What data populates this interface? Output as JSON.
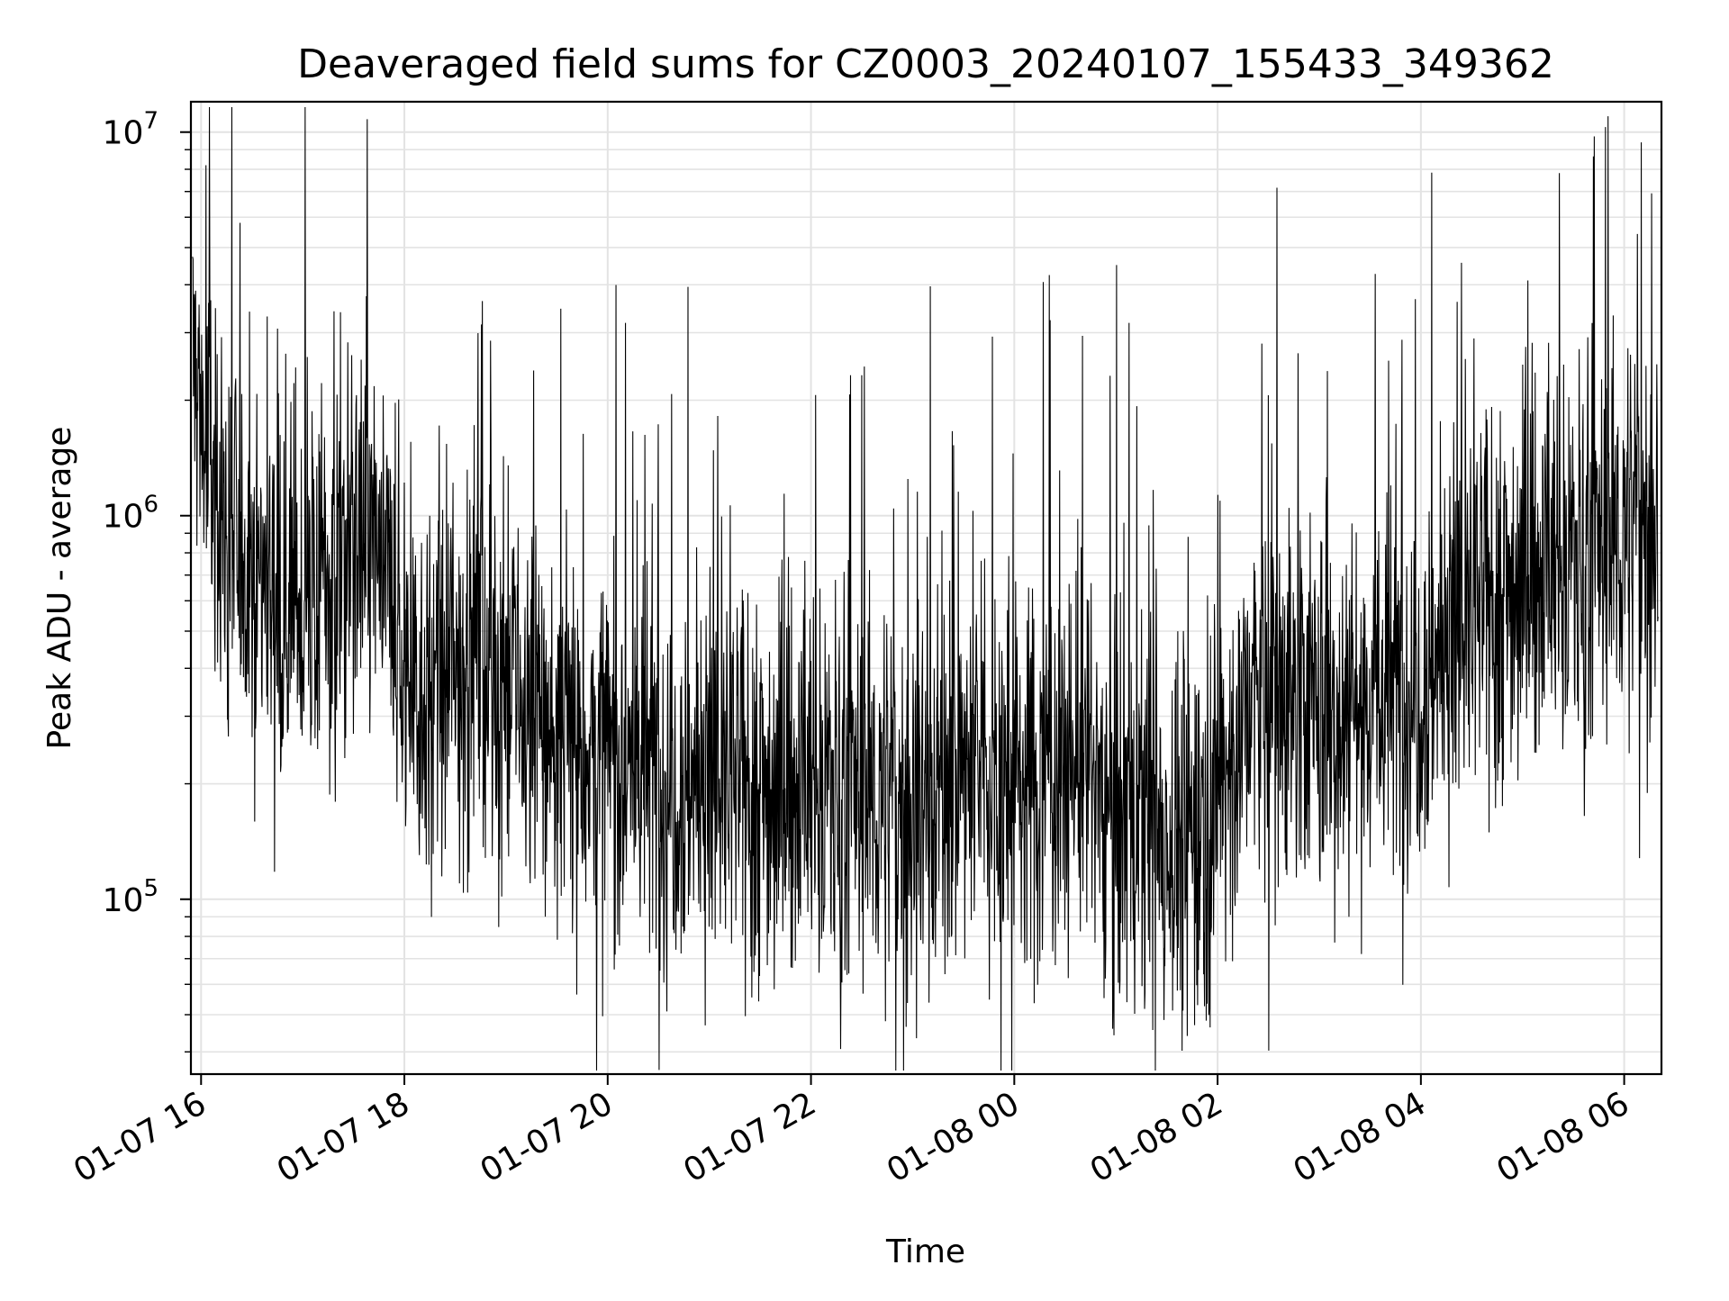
{
  "chart_data": {
    "type": "line",
    "title": "Deaveraged field sums for CZ0003_20240107_155433_349362",
    "xlabel": "Time",
    "ylabel": "Peak ADU - average",
    "y_scale": "log",
    "xlim": [
      "2024-01-07T15:54",
      "2024-01-08T06:22"
    ],
    "ylim": [
      35000,
      12000000
    ],
    "grid": true,
    "line_color": "#000000",
    "x_ticks": [
      {
        "value": "2024-01-07T16:00",
        "label": "01-07 16"
      },
      {
        "value": "2024-01-07T18:00",
        "label": "01-07 18"
      },
      {
        "value": "2024-01-07T20:00",
        "label": "01-07 20"
      },
      {
        "value": "2024-01-07T22:00",
        "label": "01-07 22"
      },
      {
        "value": "2024-01-08T00:00",
        "label": "01-08 00"
      },
      {
        "value": "2024-01-08T02:00",
        "label": "01-08 02"
      },
      {
        "value": "2024-01-08T04:00",
        "label": "01-08 04"
      },
      {
        "value": "2024-01-08T06:00",
        "label": "01-08 06"
      }
    ],
    "y_ticks": [
      {
        "value": 100000,
        "base": "10",
        "exp": "5"
      },
      {
        "value": 1000000,
        "base": "10",
        "exp": "6"
      },
      {
        "value": 10000000,
        "base": "10",
        "exp": "7"
      }
    ],
    "series": [
      {
        "values": [
          [
            "2024-01-07T15:55",
            2600000
          ],
          [
            "2024-01-07T16:05",
            1300000
          ],
          [
            "2024-01-07T16:20",
            800000
          ],
          [
            "2024-01-07T16:40",
            700000
          ],
          [
            "2024-01-07T17:00",
            550000
          ],
          [
            "2024-01-07T17:20",
            700000
          ],
          [
            "2024-01-07T17:40",
            900000
          ],
          [
            "2024-01-07T18:00",
            400000
          ],
          [
            "2024-01-07T18:20",
            320000
          ],
          [
            "2024-01-07T18:40",
            500000
          ],
          [
            "2024-01-07T19:00",
            360000
          ],
          [
            "2024-01-07T19:20",
            280000
          ],
          [
            "2024-01-07T19:40",
            260000
          ],
          [
            "2024-01-07T20:00",
            230000
          ],
          [
            "2024-01-07T20:20",
            220000
          ],
          [
            "2024-01-07T20:40",
            210000
          ],
          [
            "2024-01-07T21:00",
            200000
          ],
          [
            "2024-01-07T21:20",
            200000
          ],
          [
            "2024-01-07T21:40",
            190000
          ],
          [
            "2024-01-07T22:00",
            200000
          ],
          [
            "2024-01-07T22:20",
            190000
          ],
          [
            "2024-01-07T22:40",
            185000
          ],
          [
            "2024-01-07T23:00",
            175000
          ],
          [
            "2024-01-07T23:20",
            210000
          ],
          [
            "2024-01-07T23:40",
            220000
          ],
          [
            "2024-01-08T00:00",
            190000
          ],
          [
            "2024-01-08T00:20",
            230000
          ],
          [
            "2024-01-08T00:40",
            220000
          ],
          [
            "2024-01-08T01:00",
            170000
          ],
          [
            "2024-01-08T01:20",
            150000
          ],
          [
            "2024-01-08T01:40",
            140000
          ],
          [
            "2024-01-08T02:00",
            190000
          ],
          [
            "2024-01-08T02:20",
            330000
          ],
          [
            "2024-01-08T02:40",
            360000
          ],
          [
            "2024-01-08T03:00",
            300000
          ],
          [
            "2024-01-08T03:20",
            330000
          ],
          [
            "2024-01-08T03:40",
            340000
          ],
          [
            "2024-01-08T04:00",
            380000
          ],
          [
            "2024-01-08T04:20",
            480000
          ],
          [
            "2024-01-08T04:40",
            600000
          ],
          [
            "2024-01-08T05:00",
            680000
          ],
          [
            "2024-01-08T05:20",
            750000
          ],
          [
            "2024-01-08T05:40",
            780000
          ],
          [
            "2024-01-08T06:00",
            900000
          ],
          [
            "2024-01-08T06:20",
            1000000
          ]
        ],
        "notable_peaks": [
          [
            "2024-01-07T16:03",
            8200000
          ],
          [
            "2024-01-07T16:23",
            5800000
          ],
          [
            "2024-01-07T20:35",
            51000
          ],
          [
            "2024-01-08T01:42",
            44000
          ],
          [
            "2024-01-08T06:10",
            9400000
          ]
        ]
      }
    ]
  }
}
